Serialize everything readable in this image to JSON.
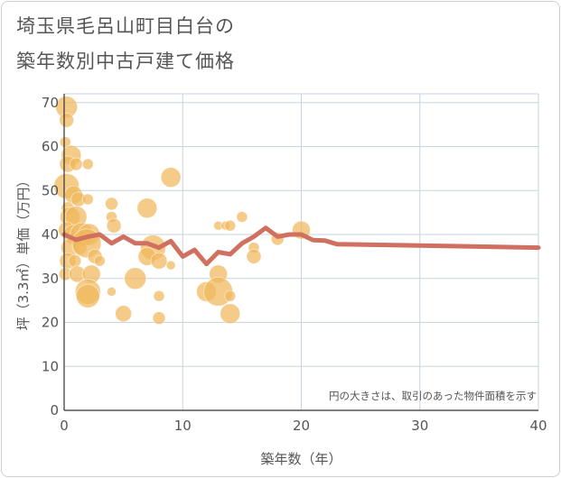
{
  "title_line1": "埼玉県毛呂山町目白台の",
  "title_line2": "築年数別中古戸建て価格",
  "chart_data": {
    "type": "scatter",
    "title": "埼玉県毛呂山町目白台の築年数別中古戸建て価格",
    "xlabel": "築年数（年）",
    "ylabel": "坪（3.3㎡）単価（万円）",
    "xlim": [
      0,
      40
    ],
    "ylim": [
      0,
      72
    ],
    "xticks": [
      0,
      10,
      20,
      30,
      40
    ],
    "yticks": [
      0,
      10,
      20,
      30,
      40,
      50,
      60,
      70
    ],
    "grid": true,
    "annotation": "円の大きさは、取引のあった物件面積を示す",
    "colors": {
      "bubble": "#f0b75a",
      "line": "#d07060",
      "grid": "#c8d3e0"
    },
    "bubbles": [
      {
        "x": 0.2,
        "y": 69,
        "r": 12
      },
      {
        "x": 0.2,
        "y": 66,
        "r": 8
      },
      {
        "x": 0.1,
        "y": 61,
        "r": 6
      },
      {
        "x": 0.6,
        "y": 58,
        "r": 11
      },
      {
        "x": 0.3,
        "y": 56,
        "r": 9
      },
      {
        "x": 1.0,
        "y": 56,
        "r": 7
      },
      {
        "x": 2.0,
        "y": 56,
        "r": 6
      },
      {
        "x": 0.2,
        "y": 51,
        "r": 14
      },
      {
        "x": 0.8,
        "y": 49,
        "r": 10
      },
      {
        "x": 0.3,
        "y": 46,
        "r": 7
      },
      {
        "x": 1.2,
        "y": 48,
        "r": 8
      },
      {
        "x": 2.0,
        "y": 48,
        "r": 6
      },
      {
        "x": 0.5,
        "y": 44,
        "r": 11
      },
      {
        "x": 1.0,
        "y": 44,
        "r": 12
      },
      {
        "x": 0.2,
        "y": 41,
        "r": 9
      },
      {
        "x": 0.8,
        "y": 40,
        "r": 11
      },
      {
        "x": 1.5,
        "y": 40,
        "r": 13
      },
      {
        "x": 2.1,
        "y": 40,
        "r": 12
      },
      {
        "x": 0.5,
        "y": 37,
        "r": 10
      },
      {
        "x": 1.3,
        "y": 37,
        "r": 8
      },
      {
        "x": 1.9,
        "y": 38,
        "r": 16
      },
      {
        "x": 0.3,
        "y": 34,
        "r": 9
      },
      {
        "x": 0.9,
        "y": 34,
        "r": 7
      },
      {
        "x": 2.6,
        "y": 35,
        "r": 8
      },
      {
        "x": 0.1,
        "y": 31,
        "r": 7
      },
      {
        "x": 1.1,
        "y": 31,
        "r": 9
      },
      {
        "x": 2.3,
        "y": 31,
        "r": 10
      },
      {
        "x": 2.0,
        "y": 27,
        "r": 14
      },
      {
        "x": 2.0,
        "y": 26,
        "r": 13
      },
      {
        "x": 3.0,
        "y": 34,
        "r": 6
      },
      {
        "x": 4.0,
        "y": 47,
        "r": 7
      },
      {
        "x": 4.0,
        "y": 44,
        "r": 6
      },
      {
        "x": 4.2,
        "y": 42,
        "r": 8
      },
      {
        "x": 4.0,
        "y": 27,
        "r": 5
      },
      {
        "x": 5.0,
        "y": 22,
        "r": 9
      },
      {
        "x": 6.0,
        "y": 30,
        "r": 12
      },
      {
        "x": 7.0,
        "y": 46,
        "r": 11
      },
      {
        "x": 7.5,
        "y": 37,
        "r": 14
      },
      {
        "x": 7.0,
        "y": 35,
        "r": 10
      },
      {
        "x": 8.0,
        "y": 34,
        "r": 9
      },
      {
        "x": 8.0,
        "y": 26,
        "r": 6
      },
      {
        "x": 8.0,
        "y": 21,
        "r": 7
      },
      {
        "x": 9.0,
        "y": 53,
        "r": 11
      },
      {
        "x": 9.0,
        "y": 33,
        "r": 5
      },
      {
        "x": 12.0,
        "y": 27,
        "r": 11
      },
      {
        "x": 13.0,
        "y": 42,
        "r": 5
      },
      {
        "x": 13.0,
        "y": 31,
        "r": 10
      },
      {
        "x": 13.0,
        "y": 27,
        "r": 16
      },
      {
        "x": 13.6,
        "y": 42,
        "r": 5
      },
      {
        "x": 14.0,
        "y": 26,
        "r": 6
      },
      {
        "x": 14.0,
        "y": 22,
        "r": 11
      },
      {
        "x": 14.0,
        "y": 42,
        "r": 6
      },
      {
        "x": 15.0,
        "y": 44,
        "r": 6
      },
      {
        "x": 16.0,
        "y": 37,
        "r": 6
      },
      {
        "x": 16.0,
        "y": 35,
        "r": 8
      },
      {
        "x": 18.0,
        "y": 39,
        "r": 7
      },
      {
        "x": 20.0,
        "y": 41,
        "r": 10
      }
    ],
    "line": {
      "x": [
        0,
        1,
        2,
        3,
        4,
        5,
        6,
        7,
        8,
        9,
        10,
        11,
        12,
        13,
        14,
        15,
        16,
        17,
        18,
        19,
        20,
        21,
        22,
        23,
        30,
        40
      ],
      "y": [
        40,
        38.8,
        39.5,
        40,
        38,
        39.5,
        38,
        38,
        37,
        38.5,
        35,
        36.5,
        33.3,
        36,
        35.5,
        38,
        39.5,
        41.5,
        39.5,
        40,
        40,
        38.7,
        38.6,
        37.8,
        37.5,
        37
      ]
    }
  }
}
